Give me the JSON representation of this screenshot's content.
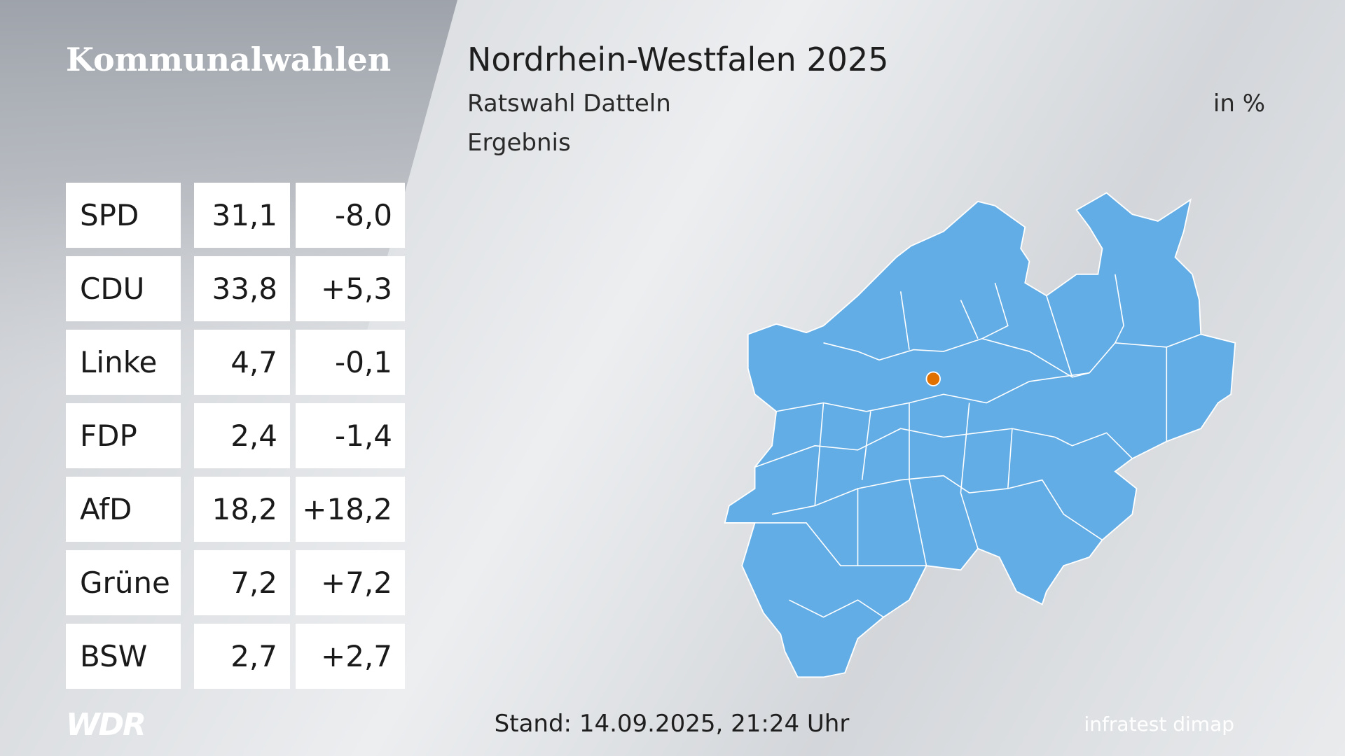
{
  "sidebar_title": "Kommunalwahlen",
  "header": {
    "title": "Nordrhein-Westfalen 2025",
    "subtitle": "Ratswahl Datteln",
    "unit": "in %",
    "label": "Ergebnis"
  },
  "table": {
    "rows": [
      [
        "SPD",
        "31,1",
        "-8,0"
      ],
      [
        "CDU",
        "33,8",
        "+5,3"
      ],
      [
        "Linke",
        "4,7",
        "-0,1"
      ],
      [
        "FDP",
        "2,4",
        "-1,4"
      ],
      [
        "AfD",
        "18,2",
        "+18,2"
      ],
      [
        "Grüne",
        "7,2",
        "+7,2"
      ],
      [
        "BSW",
        "2,7",
        "+2,7"
      ]
    ]
  },
  "footer": {
    "logo": "WDR",
    "stand": "Stand: 14.09.2025, 21:24 Uhr",
    "source": "infratest dimap"
  }
}
